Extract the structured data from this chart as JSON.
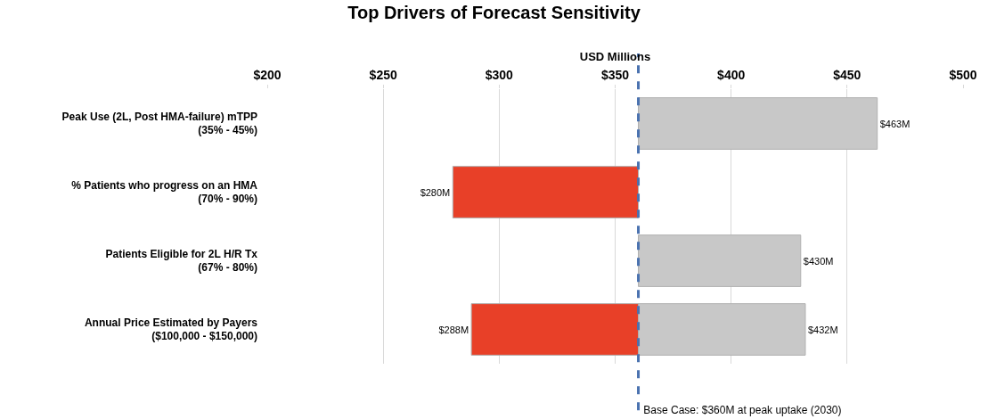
{
  "chart_data": {
    "type": "bar",
    "orientation": "horizontal",
    "title": "Top Drivers of Forecast Sensitivity",
    "xlabel": "USD Millions",
    "categories": [
      "Peak Use (2L, Post HMA-failure) mTPP\n(35% - 45%)",
      "% Patients who progress on an HMA\n(70% - 90%)",
      "Patients Eligible for 2L H/R Tx\n(67% - 80%)",
      "Annual Price Estimated by Payers\n($100,000 - $150,000)"
    ],
    "series": [
      {
        "color": "#c8c8c8",
        "base": [
          360,
          null,
          360,
          360
        ],
        "values": [
          103,
          null,
          70,
          72
        ],
        "value_labels": [
          "$463M",
          null,
          "$430M",
          "$432M"
        ]
      },
      {
        "color": "#e84028",
        "base": [
          null,
          360,
          null,
          360
        ],
        "values": [
          null,
          -80,
          null,
          -72
        ],
        "value_labels": [
          null,
          "$280M",
          null,
          "$288M"
        ]
      }
    ],
    "xlim": [
      200,
      500
    ],
    "xticks": [
      {
        "value": 200,
        "label": "$200"
      },
      {
        "value": 250,
        "label": "$250"
      },
      {
        "value": 300,
        "label": "$300"
      },
      {
        "value": 350,
        "label": "$350"
      },
      {
        "value": 400,
        "label": "$400"
      },
      {
        "value": 450,
        "label": "$450"
      },
      {
        "value": 500,
        "label": "$500"
      }
    ],
    "ref_lines": [
      {
        "axis": "x",
        "value": 360,
        "label": "Base Case: $360M at peak uptake (2030)",
        "color": "#4a72b0",
        "line_style": "dashed"
      }
    ],
    "grid": "x"
  }
}
